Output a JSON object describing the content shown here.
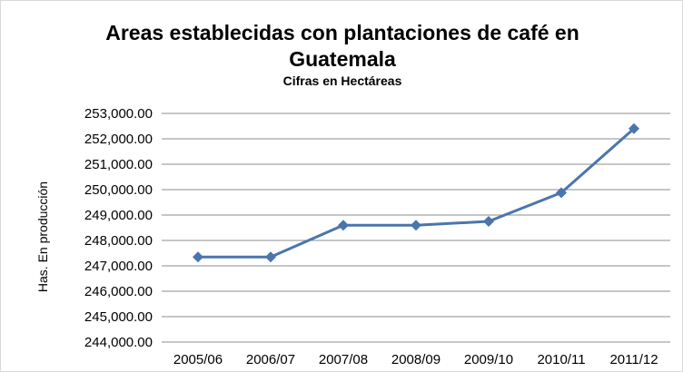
{
  "chart_data": {
    "type": "line",
    "title_line1": "Areas establecidas con plantaciones de café en",
    "title_line2": "Guatemala",
    "subtitle": "Cifras en Hectáreas",
    "xlabel": "",
    "ylabel": "Has. En producción",
    "categories": [
      "2005/06",
      "2006/07",
      "2007/08",
      "2008/09",
      "2009/10",
      "2010/11",
      "2011/12"
    ],
    "series": [
      {
        "values": [
          247350,
          247350,
          248600,
          248600,
          248750,
          249880,
          252400
        ]
      }
    ],
    "ylim": [
      244000,
      253000
    ],
    "yticks": [
      244000,
      245000,
      246000,
      247000,
      248000,
      249000,
      250000,
      251000,
      252000,
      253000
    ],
    "ytick_labels": [
      "244,000.00",
      "245,000.00",
      "246,000.00",
      "247,000.00",
      "248,000.00",
      "249,000.00",
      "250,000.00",
      "251,000.00",
      "252,000.00",
      "253,000.00"
    ],
    "grid": true,
    "legend": false,
    "line_color": "#4a76ac",
    "grid_color": "#8c8c8c"
  }
}
